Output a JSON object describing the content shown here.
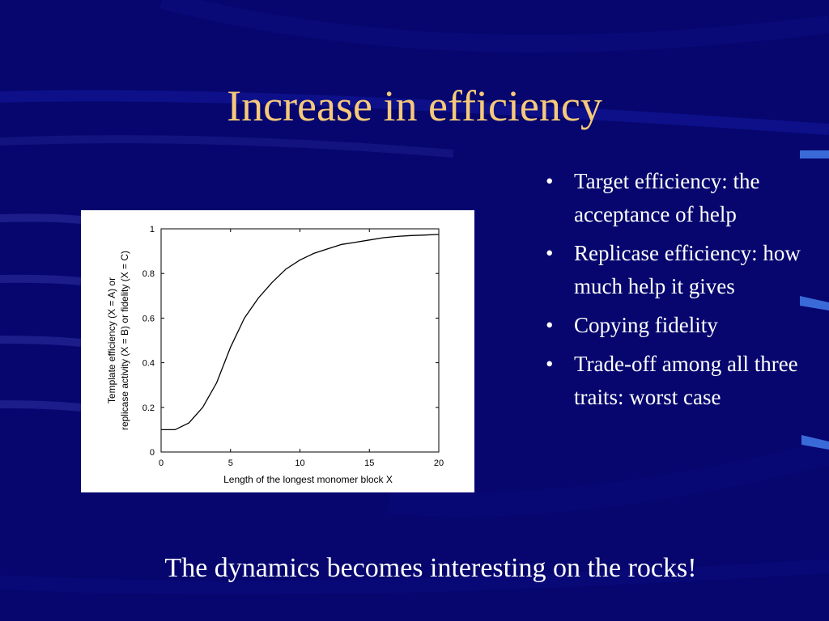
{
  "slide": {
    "title": "Increase in efficiency",
    "footer": "The dynamics becomes interesting on the rocks!",
    "colors": {
      "background": "#06066e",
      "title": "#f7c97a",
      "text": "#ffffff",
      "accent": "#3a6ad8"
    }
  },
  "bullets": [
    "Target efficiency: the acceptance of help",
    "Replicase efficiency: how much help it gives",
    "Copying fidelity",
    "Trade-off among all three traits: worst case"
  ],
  "bullet_glyph": "•",
  "chart_data": {
    "type": "line",
    "xlabel": "Length of the longest monomer block X",
    "ylabel_line1": "Template efficiency (X = A) or",
    "ylabel_line2": "replicase activity (X = B) or fidelity (X = C)",
    "xlim": [
      0,
      20
    ],
    "ylim": [
      0,
      1
    ],
    "xticks": [
      "0",
      "5",
      "10",
      "15",
      "20"
    ],
    "yticks": [
      "0",
      "0.2",
      "0.4",
      "0.6",
      "0.8",
      "1"
    ],
    "series": [
      {
        "x": [
          0,
          1,
          2,
          3,
          4,
          5,
          6,
          7,
          8,
          9,
          10,
          11,
          12,
          13,
          14,
          15,
          16,
          17,
          18,
          19,
          20
        ],
        "y": [
          0.1,
          0.1,
          0.13,
          0.2,
          0.31,
          0.47,
          0.6,
          0.69,
          0.76,
          0.82,
          0.86,
          0.89,
          0.91,
          0.93,
          0.94,
          0.95,
          0.96,
          0.966,
          0.97,
          0.972,
          0.975
        ]
      }
    ]
  }
}
